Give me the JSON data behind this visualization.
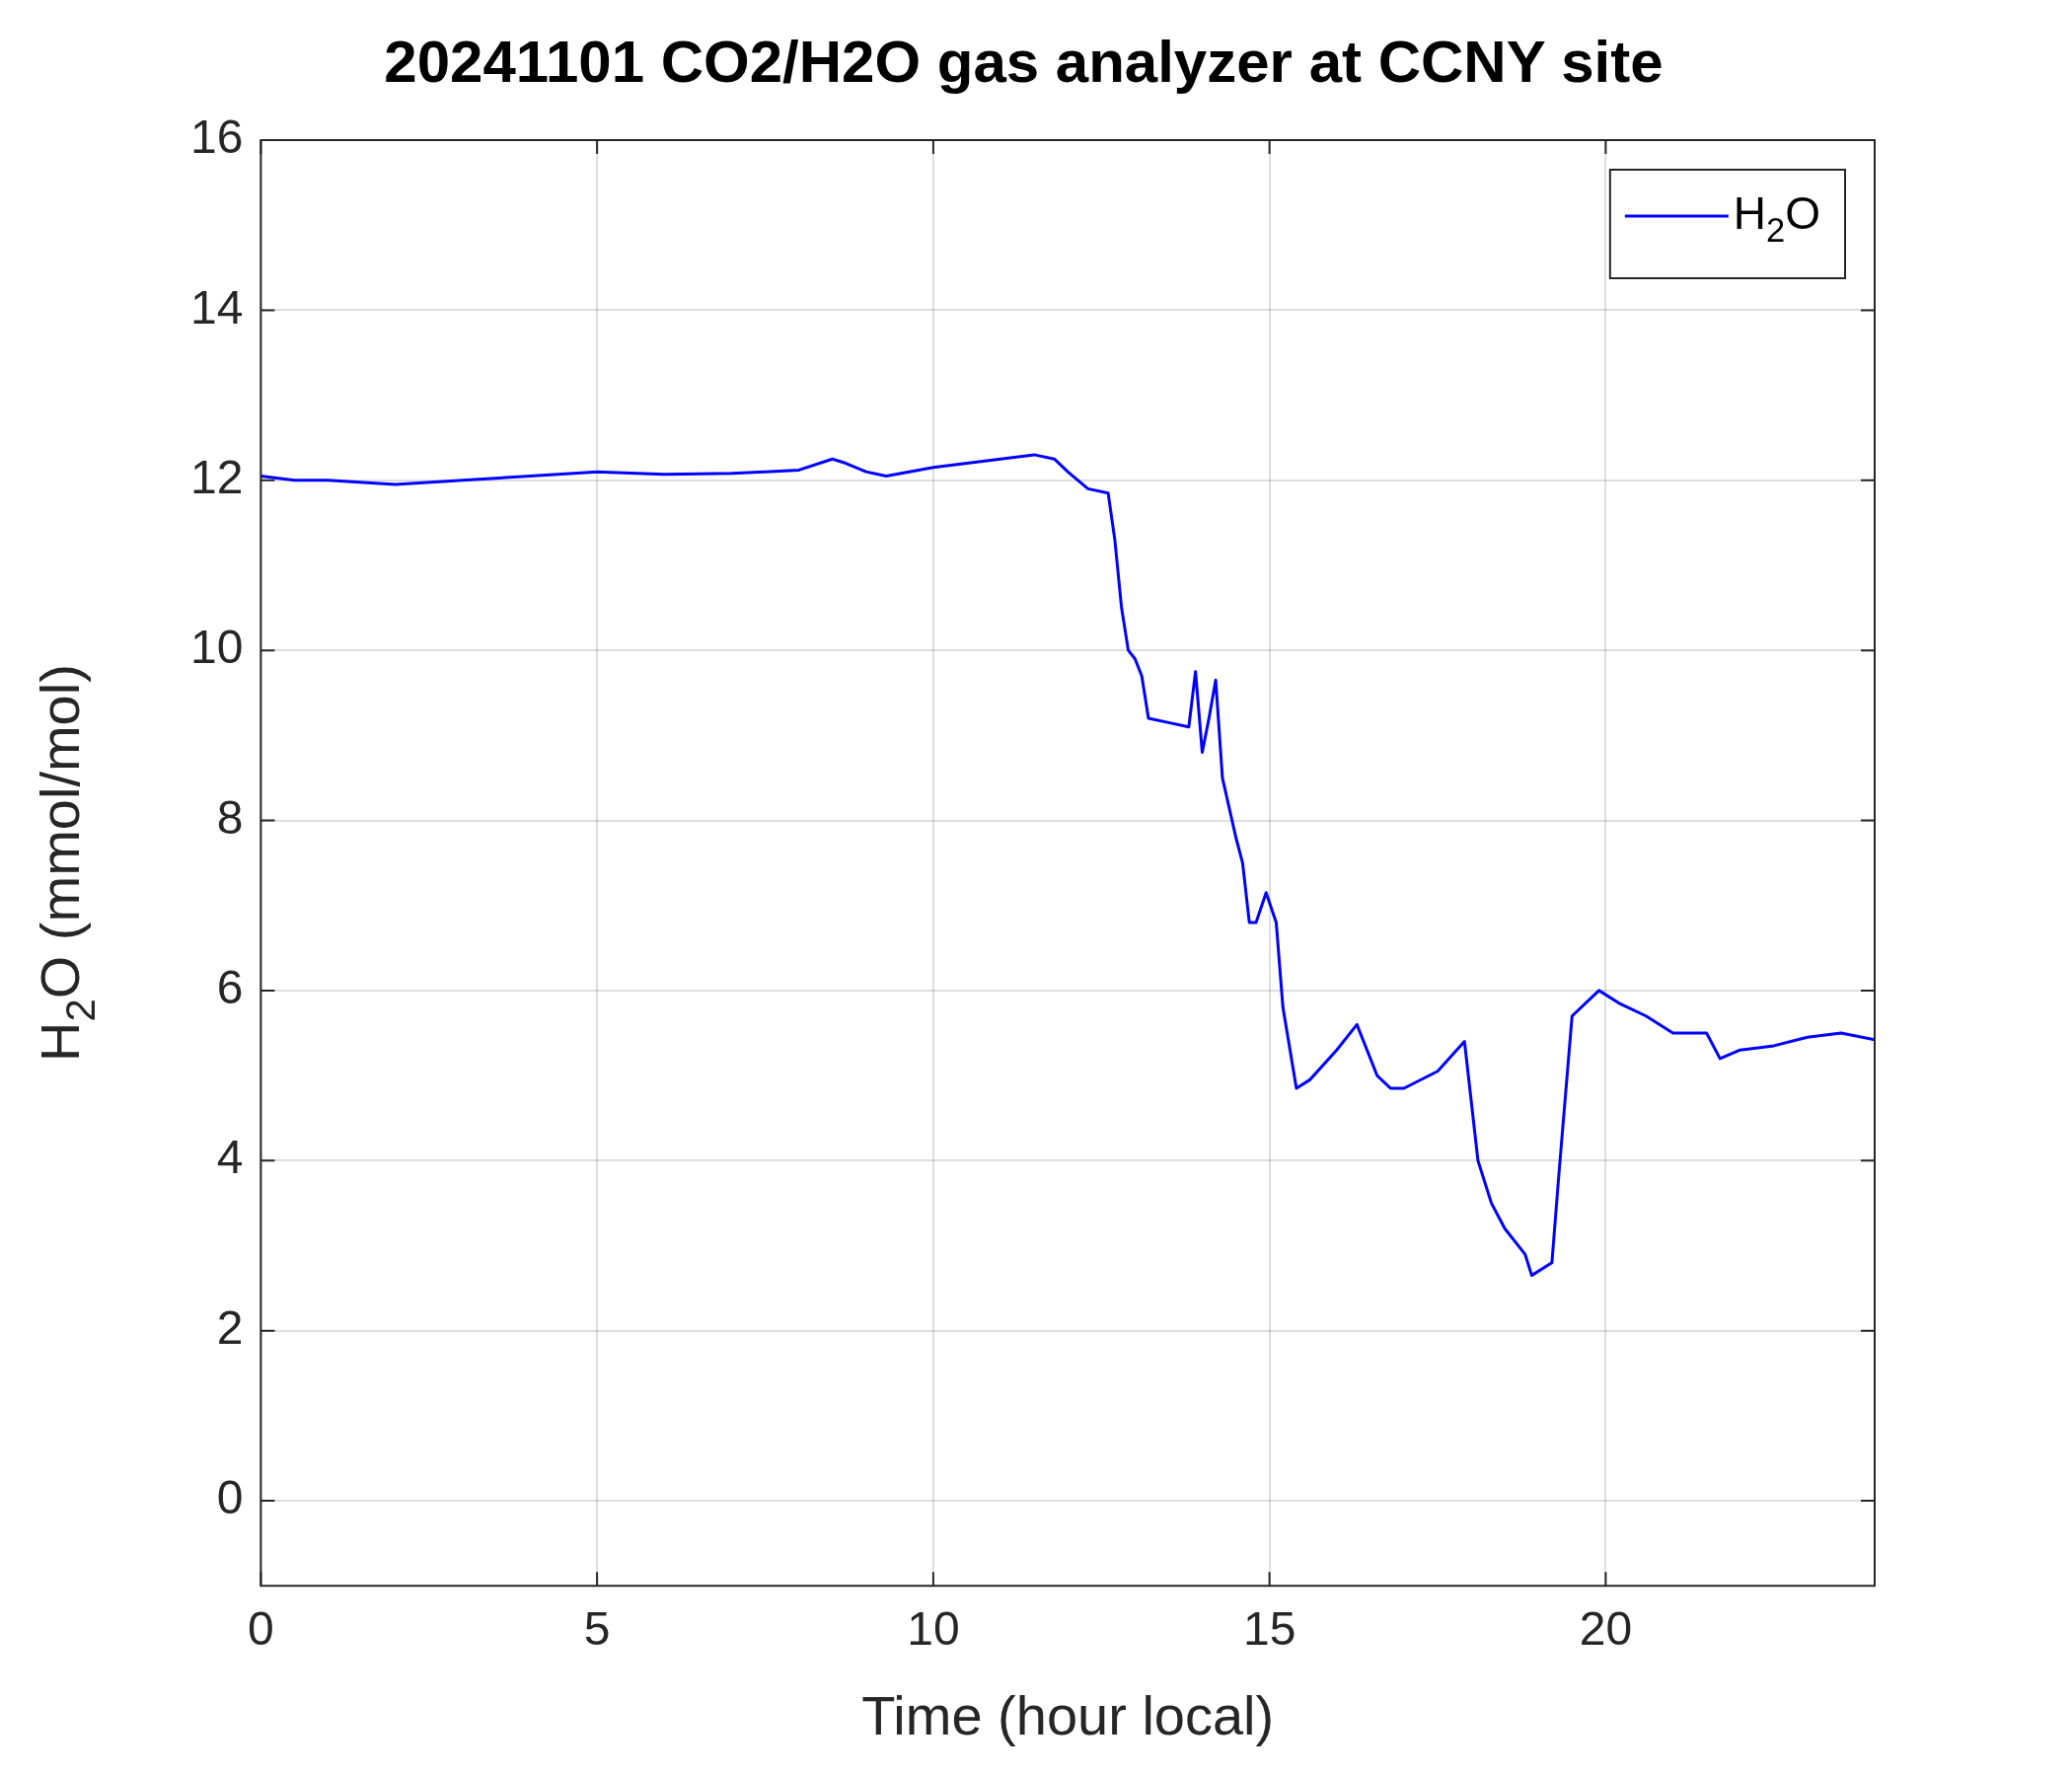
{
  "chart_data": {
    "type": "line",
    "title": "20241101 CO2/H2O gas analyzer at CCNY site",
    "xlabel": "Time (hour local)",
    "ylabel": "H$_{2}$O (mmol/mol)",
    "xlim": [
      0,
      24
    ],
    "xticks": [
      0,
      5,
      10,
      15,
      20
    ],
    "ylim": [
      -1,
      16
    ],
    "yticks": [
      0,
      2,
      4,
      6,
      8,
      10,
      12,
      14,
      16
    ],
    "grid": true,
    "legend": "top right",
    "marker": "none",
    "line_style": "solid",
    "series": [
      {
        "name": "H$_{2}$O",
        "color": "#0000ff",
        "x": [
          0,
          0.5,
          1,
          2,
          3,
          4,
          5,
          6,
          7,
          7.5,
          8,
          8.5,
          8.7,
          9,
          9.3,
          10,
          11,
          11.5,
          11.8,
          12,
          12.3,
          12.6,
          12.7,
          12.8,
          12.9,
          13,
          13.1,
          13.2,
          13.5,
          13.8,
          13.9,
          14,
          14.1,
          14.2,
          14.3,
          14.5,
          14.6,
          14.7,
          14.8,
          14.95,
          15.1,
          15.2,
          15.4,
          15.6,
          16,
          16.3,
          16.6,
          16.8,
          17,
          17.5,
          17.9,
          18.1,
          18.3,
          18.5,
          18.8,
          18.9,
          19.2,
          19.3,
          19.5,
          19.9,
          20.2,
          20.6,
          21,
          21.5,
          21.7,
          22,
          22.5,
          23,
          23.5,
          24
        ],
        "values": [
          12.05,
          12,
          12,
          11.95,
          12,
          12.05,
          12.1,
          12.07,
          12.08,
          12.1,
          12.12,
          12.25,
          12.2,
          12.1,
          12.05,
          12.15,
          12.25,
          12.3,
          12.25,
          12.1,
          11.9,
          11.85,
          11.3,
          10.5,
          10,
          9.9,
          9.7,
          9.2,
          9.15,
          9.1,
          9.75,
          8.8,
          9.2,
          9.65,
          8.5,
          7.8,
          7.5,
          6.8,
          6.8,
          7.15,
          6.8,
          5.8,
          4.85,
          4.95,
          5.3,
          5.6,
          5,
          4.85,
          4.85,
          5.05,
          5.4,
          4,
          3.5,
          3.2,
          2.9,
          2.65,
          2.8,
          3.8,
          5.7,
          6,
          5.85,
          5.7,
          5.5,
          5.5,
          5.2,
          5.3,
          5.35,
          5.45,
          5.5,
          5.42
        ]
      }
    ]
  }
}
